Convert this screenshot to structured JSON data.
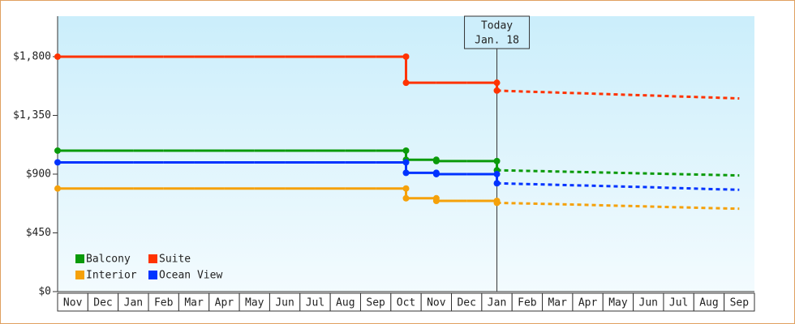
{
  "chart_data": {
    "type": "step-line",
    "categories": [
      "Nov",
      "Dec",
      "Jan",
      "Feb",
      "Mar",
      "Apr",
      "May",
      "Jun",
      "Jul",
      "Aug",
      "Sep",
      "Oct",
      "Nov",
      "Dec",
      "Jan",
      "Feb",
      "Mar",
      "Apr",
      "May",
      "Jun",
      "Jul",
      "Aug",
      "Sep"
    ],
    "ylim": [
      0,
      2110
    ],
    "yticks": [
      {
        "value": 0,
        "label": "$0"
      },
      {
        "value": 450,
        "label": "$450"
      },
      {
        "value": 900,
        "label": "$900"
      },
      {
        "value": 1350,
        "label": "$1,350"
      },
      {
        "value": 1800,
        "label": "$1,800"
      }
    ],
    "today_label": [
      "Today",
      "Jan. 18"
    ],
    "series": [
      {
        "name": "Balcony",
        "color": "#0a9a0a",
        "values": [
          1080,
          1080,
          1080,
          1080,
          1080,
          1080,
          1080,
          1080,
          1080,
          1080,
          1080,
          1010,
          1000,
          1000,
          930,
          null,
          null,
          null,
          null,
          null,
          null,
          null,
          null
        ],
        "forecast": [
          null,
          null,
          null,
          null,
          null,
          null,
          null,
          null,
          null,
          null,
          null,
          null,
          null,
          null,
          930,
          925,
          920,
          915,
          910,
          905,
          900,
          895,
          890
        ]
      },
      {
        "name": "Suite",
        "color": "#ff3300",
        "values": [
          1800,
          1800,
          1800,
          1800,
          1800,
          1800,
          1800,
          1800,
          1800,
          1800,
          1800,
          1600,
          1600,
          1600,
          1540,
          null,
          null,
          null,
          null,
          null,
          null,
          null,
          null
        ],
        "forecast": [
          null,
          null,
          null,
          null,
          null,
          null,
          null,
          null,
          null,
          null,
          null,
          null,
          null,
          null,
          1540,
          1532,
          1525,
          1518,
          1510,
          1503,
          1495,
          1488,
          1480
        ]
      },
      {
        "name": "Interior",
        "color": "#f5a10a",
        "values": [
          790,
          790,
          790,
          790,
          790,
          790,
          790,
          790,
          790,
          790,
          790,
          715,
          695,
          695,
          680,
          null,
          null,
          null,
          null,
          null,
          null,
          null,
          null
        ],
        "forecast": [
          null,
          null,
          null,
          null,
          null,
          null,
          null,
          null,
          null,
          null,
          null,
          null,
          null,
          null,
          680,
          675,
          670,
          664,
          658,
          652,
          646,
          640,
          635
        ]
      },
      {
        "name": "Ocean View",
        "color": "#0033ff",
        "values": [
          990,
          990,
          990,
          990,
          990,
          990,
          990,
          990,
          990,
          990,
          990,
          910,
          900,
          900,
          830,
          null,
          null,
          null,
          null,
          null,
          null,
          null,
          null
        ],
        "forecast": [
          null,
          null,
          null,
          null,
          null,
          null,
          null,
          null,
          null,
          null,
          null,
          null,
          null,
          null,
          830,
          824,
          818,
          812,
          806,
          800,
          793,
          786,
          780
        ]
      }
    ]
  }
}
